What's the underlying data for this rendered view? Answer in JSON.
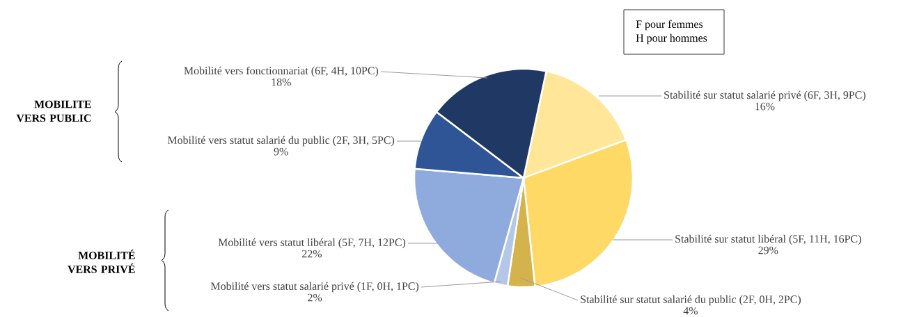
{
  "chart_data": {
    "type": "pie",
    "categories": [
      "Stabilité sur statut salarié privé (6F, 3H, 9PC)",
      "Stabilité sur statut libéral (5F, 11H, 16PC)",
      "Stabilité sur statut salarié du public (2F, 0H, 2PC)",
      "Mobilité vers statut salarié privé (1F, 0H, 1PC)",
      "Mobilité vers statut libéral (5F, 7H, 12PC)",
      "Mobilité vers statut salarié du public (2F, 3H, 5PC)",
      "Mobilité vers fonctionnariat (6F, 4H, 10PC)"
    ],
    "values": [
      16,
      29,
      4,
      2,
      22,
      9,
      18
    ],
    "value_labels": [
      "16%",
      "29%",
      "4%",
      "2%",
      "22%",
      "9%",
      "18%"
    ],
    "colors": [
      "#ffe699",
      "#ffd966",
      "#d4b24c",
      "#b4c7e7",
      "#8faadc",
      "#2f5597",
      "#203864"
    ],
    "annotations": [
      "F pour femmes",
      "H pour hommes",
      "MOBILITE VERS PUBLIC",
      "MOBILITÉ VERS PRIVÉ"
    ]
  }
}
